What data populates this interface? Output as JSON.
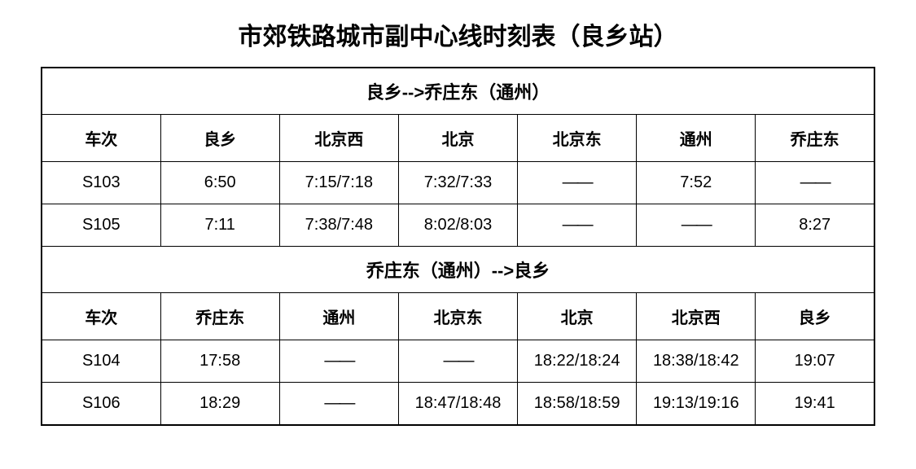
{
  "title": "市郊铁路城市副中心线时刻表（良乡站）",
  "section1": {
    "header": "良乡-->乔庄东（通州）",
    "columns": [
      "车次",
      "良乡",
      "北京西",
      "北京",
      "北京东",
      "通州",
      "乔庄东"
    ],
    "rows": [
      [
        "S103",
        "6:50",
        "7:15/7:18",
        "7:32/7:33",
        "——",
        "7:52",
        "——"
      ],
      [
        "S105",
        "7:11",
        "7:38/7:48",
        "8:02/8:03",
        "——",
        "——",
        "8:27"
      ]
    ]
  },
  "section2": {
    "header": "乔庄东（通州）-->良乡",
    "columns": [
      "车次",
      "乔庄东",
      "通州",
      "北京东",
      "北京",
      "北京西",
      "良乡"
    ],
    "rows": [
      [
        "S104",
        "17:58",
        "——",
        "——",
        "18:22/18:24",
        "18:38/18:42",
        "19:07"
      ],
      [
        "S106",
        "18:29",
        "——",
        "18:47/18:48",
        "18:58/18:59",
        "19:13/19:16",
        "19:41"
      ]
    ]
  },
  "styling": {
    "title_fontsize": 30,
    "header_fontsize": 22,
    "column_header_fontsize": 20,
    "cell_fontsize": 20,
    "border_color": "#000000",
    "text_color": "#000000",
    "background_color": "#ffffff",
    "font_weight_headers": "bold",
    "font_weight_cells": "normal",
    "column_count": 7
  }
}
